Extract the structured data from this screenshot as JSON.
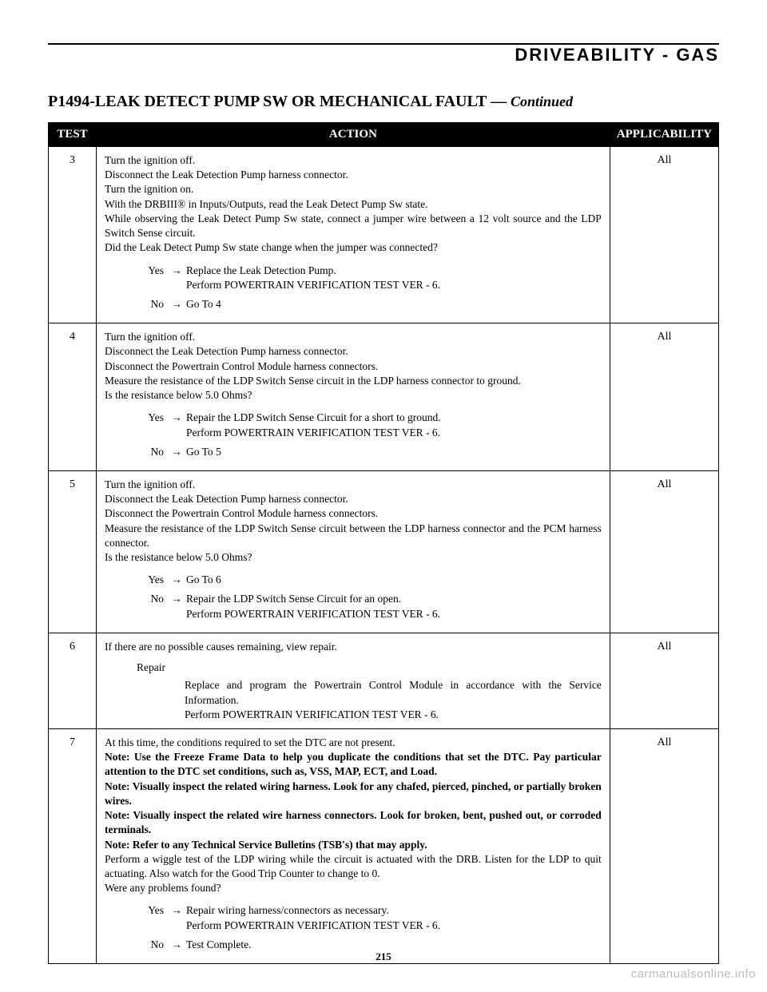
{
  "header": {
    "section": "DRIVEABILITY - GAS"
  },
  "title": {
    "main": "P1494-LEAK DETECT PUMP SW OR MECHANICAL FAULT —",
    "cont": "Continued"
  },
  "table": {
    "headers": {
      "test": "TEST",
      "action": "ACTION",
      "app": "APPLICABILITY"
    },
    "rows": [
      {
        "num": "3",
        "app": "All",
        "body": [
          "Turn the ignition off.",
          "Disconnect the Leak Detection Pump harness connector.",
          "Turn the ignition on.",
          "With the DRBIII® in Inputs/Outputs, read the Leak Detect Pump Sw state.",
          "While observing the Leak Detect Pump Sw state, connect a jumper wire between a 12 volt source and the LDP Switch Sense circuit.",
          "Did the Leak Detect Pump Sw state change when the jumper was connected?"
        ],
        "yes": [
          "Replace the Leak Detection Pump.",
          "Perform POWERTRAIN VERIFICATION TEST VER - 6."
        ],
        "no": [
          "Go To   4"
        ]
      },
      {
        "num": "4",
        "app": "All",
        "body": [
          "Turn the ignition off.",
          "Disconnect the Leak Detection Pump harness connector.",
          "Disconnect the Powertrain Control Module harness connectors.",
          "Measure the resistance of the LDP Switch Sense circuit in the LDP harness connector to ground.",
          "Is the resistance below 5.0 Ohms?"
        ],
        "yes": [
          "Repair the LDP Switch Sense Circuit for a short to ground.",
          "Perform POWERTRAIN VERIFICATION TEST VER - 6."
        ],
        "no": [
          "Go To   5"
        ]
      },
      {
        "num": "5",
        "app": "All",
        "body": [
          "Turn the ignition off.",
          "Disconnect the Leak Detection Pump harness connector.",
          "Disconnect the Powertrain Control Module harness connectors.",
          "Measure the resistance of the LDP Switch Sense circuit between the LDP harness connector and the PCM harness connector.",
          "Is the resistance below 5.0 Ohms?"
        ],
        "yes": [
          "Go To   6"
        ],
        "no": [
          "Repair the LDP Switch Sense Circuit for an open.",
          "Perform POWERTRAIN VERIFICATION TEST VER - 6."
        ]
      },
      {
        "num": "6",
        "app": "All",
        "body": [
          "If there are no possible causes remaining, view repair."
        ],
        "repair_label": "Repair",
        "repair": [
          "Replace and program the Powertrain Control Module in accordance with the Service Information.",
          "Perform POWERTRAIN VERIFICATION TEST VER - 6."
        ]
      },
      {
        "num": "7",
        "app": "All",
        "body": [
          "At this time, the conditions required to set the DTC are not present.",
          "<b>Note: Use the Freeze Frame Data to help you duplicate the conditions that set the DTC. Pay particular attention to the DTC set conditions, such as, VSS, MAP, ECT, and Load.</b>",
          "<b>Note: Visually inspect the related wiring harness. Look for any chafed, pierced, pinched, or partially broken wires.</b>",
          "<b>Note: Visually inspect the related wire harness connectors. Look for broken, bent, pushed out, or corroded terminals.</b>",
          "<b>Note: Refer to any Technical Service Bulletins (TSB's) that may apply.</b>",
          "Perform a wiggle test of the LDP wiring while the circuit is actuated with the DRB. Listen for the LDP to quit actuating. Also watch for the Good Trip Counter to change to 0.",
          "Were any problems found?"
        ],
        "yes": [
          "Repair wiring harness/connectors as necessary.",
          "Perform POWERTRAIN VERIFICATION TEST VER - 6."
        ],
        "no": [
          "Test Complete."
        ]
      }
    ]
  },
  "page_number": "215",
  "watermark": "carmanualsonline.info",
  "arrow": "→"
}
